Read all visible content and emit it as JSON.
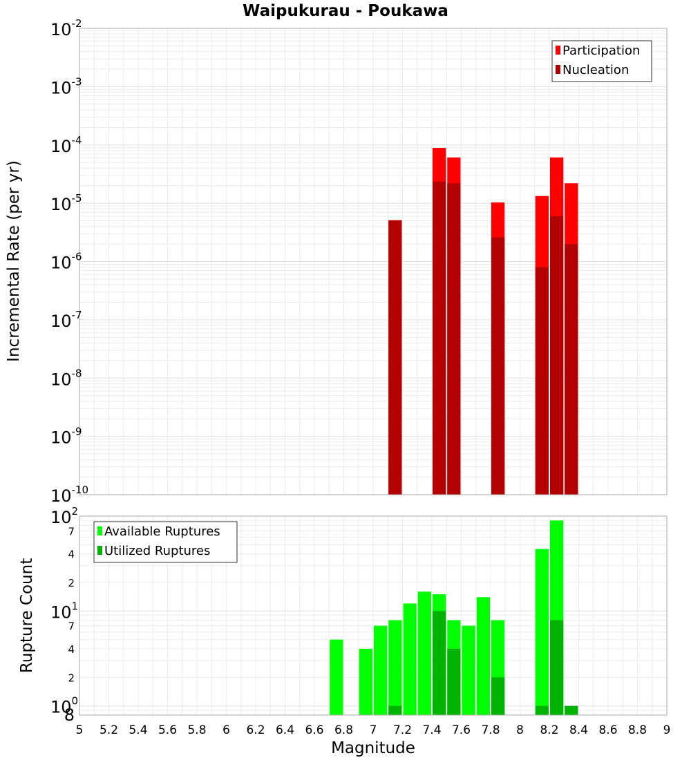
{
  "chart_data": [
    {
      "type": "bar",
      "title": "Waipukurau - Poukawa",
      "xlabel": "",
      "ylabel": "Incremental Rate (per yr)",
      "yscale": "log",
      "ylim": [
        1e-10,
        0.01
      ],
      "xlim": [
        5,
        9
      ],
      "grid": true,
      "legend_position": "top-right",
      "y_tick_labels": [
        {
          "base": "10",
          "exp": "-10"
        },
        {
          "base": "10",
          "exp": "-9"
        },
        {
          "base": "10",
          "exp": "-8"
        },
        {
          "base": "10",
          "exp": "-7"
        },
        {
          "base": "10",
          "exp": "-6"
        },
        {
          "base": "10",
          "exp": "-5"
        },
        {
          "base": "10",
          "exp": "-4"
        },
        {
          "base": "10",
          "exp": "-3"
        },
        {
          "base": "10",
          "exp": "-2"
        }
      ],
      "series": [
        {
          "name": "Participation",
          "color": "#ff0000",
          "x": [
            7.15,
            7.45,
            7.55,
            7.85,
            8.15,
            8.25,
            8.35
          ],
          "values": [
            5.1e-06,
            8.9e-05,
            6.1e-05,
            1.03e-05,
            1.33e-05,
            6.1e-05,
            2.2e-05
          ]
        },
        {
          "name": "Nucleation",
          "color": "#b30000",
          "x": [
            7.15,
            7.45,
            7.55,
            7.85,
            8.15,
            8.25,
            8.35
          ],
          "values": [
            5.1e-06,
            2.35e-05,
            2.2e-05,
            2.6e-06,
            8e-07,
            6e-06,
            2e-06
          ]
        }
      ]
    },
    {
      "type": "bar",
      "title": "",
      "xlabel": "Magnitude",
      "ylabel": "Rupture Count",
      "yscale": "log",
      "ylim": [
        0.8,
        100
      ],
      "xlim": [
        5,
        9
      ],
      "grid": true,
      "legend_position": "top-left",
      "x_tick_labels": [
        "5",
        "5.2",
        "5.4",
        "5.6",
        "5.8",
        "6",
        "6.2",
        "6.4",
        "6.6",
        "6.8",
        "7",
        "7.2",
        "7.4",
        "7.6",
        "7.8",
        "8",
        "8.2",
        "8.4",
        "8.6",
        "8.8",
        "9"
      ],
      "y_major_tick_labels": [
        {
          "base": "10",
          "exp": "0"
        },
        {
          "base": "10",
          "exp": "1"
        },
        {
          "base": "10",
          "exp": "2"
        }
      ],
      "y_minor_tick_labels": [
        "8",
        "2",
        "4",
        "7",
        "2",
        "4",
        "7"
      ],
      "series": [
        {
          "name": "Available Ruptures",
          "color": "#00ff00",
          "x": [
            6.75,
            6.95,
            7.05,
            7.15,
            7.25,
            7.35,
            7.45,
            7.55,
            7.65,
            7.75,
            7.85,
            8.15,
            8.25
          ],
          "values": [
            5,
            4,
            7,
            8,
            12,
            16,
            15,
            8,
            7,
            14,
            8,
            45,
            90
          ]
        },
        {
          "name": "Utilized Ruptures",
          "color": "#00b300",
          "x": [
            7.15,
            7.45,
            7.55,
            7.85,
            8.15,
            8.25,
            8.35
          ],
          "values": [
            1,
            10,
            4,
            2,
            1,
            8,
            1
          ]
        }
      ]
    }
  ]
}
